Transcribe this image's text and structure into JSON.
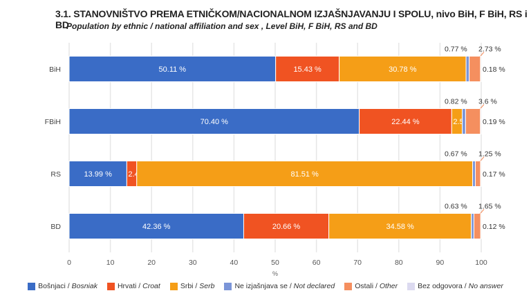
{
  "title": "3.1.  STANOVNIŠTVO PREMA ETNIČKOM/NACIONALNOM IZJAŠNJAVANJU I SPOLU, nivo BiH, F BiH, RS i BD",
  "subtitle": "Population by ethnic / national affiliation and sex , Level BiH, F BiH, RS and BD",
  "chart_data": {
    "type": "bar",
    "orientation": "horizontal",
    "stacked": true,
    "categories": [
      "BiH",
      "FBiH",
      "RS",
      "BD"
    ],
    "xlabel": "%",
    "xlim": [
      0,
      100
    ],
    "xticks": [
      "0",
      "10",
      "20",
      "30",
      "40",
      "50",
      "60",
      "70",
      "80",
      "90",
      "100"
    ],
    "grid": true,
    "legend_position": "bottom",
    "series": [
      {
        "name": "Bošnjaci",
        "name_en": "Bosniak",
        "color": "#3a6cc6",
        "values": [
          50.11,
          70.4,
          13.99,
          42.36
        ],
        "labels": [
          "50.11 %",
          "70.40 %",
          "13.99 %",
          "42.36 %"
        ]
      },
      {
        "name": "Hrvati",
        "name_en": "Croat",
        "color": "#f05322",
        "values": [
          15.43,
          22.44,
          2.41,
          20.66
        ],
        "labels": [
          "15.43 %",
          "22.44 %",
          "2.41 %",
          "20.66 %"
        ]
      },
      {
        "name": "Srbi",
        "name_en": "Serb",
        "color": "#f59e17",
        "values": [
          30.78,
          2.55,
          81.51,
          34.58
        ],
        "labels": [
          "30.78 %",
          "2.55 %",
          "81.51 %",
          "34.58 %"
        ]
      },
      {
        "name": "Ne izjašnjava se",
        "name_en": "Not declared",
        "color": "#7b95d8",
        "values": [
          0.77,
          0.82,
          0.67,
          0.63
        ],
        "labels": [
          "0.77 %",
          "0.82 %",
          "0.67 %",
          "0.63 %"
        ]
      },
      {
        "name": "Ostali",
        "name_en": "Other",
        "color": "#f58f5f",
        "values": [
          2.73,
          3.6,
          1.25,
          1.65
        ],
        "labels": [
          "2.73 %",
          "3.6 %",
          "1.25 %",
          "1.65 %"
        ]
      },
      {
        "name": "Bez odgovora",
        "name_en": "No answer",
        "color": "#dcdaf0",
        "values": [
          0.18,
          0.19,
          0.17,
          0.12
        ],
        "labels": [
          "0.18 %",
          "0.19 %",
          "0.17 %",
          "0.12 %"
        ]
      }
    ]
  }
}
